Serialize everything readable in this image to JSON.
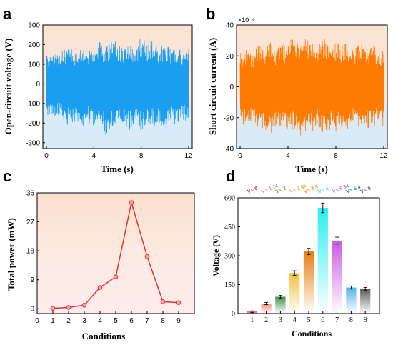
{
  "colors": {
    "axis": "#000000",
    "voltage_wave": "#1a9ff0",
    "current_wave": "#ff7a00",
    "power_line": "#e8312f",
    "bg_top_warm": "#fbe3d3",
    "bg_bottom_cool": "#dcecf8"
  },
  "chart_data": [
    {
      "id": "a",
      "panel_label": "a",
      "type": "line",
      "xlabel": "Time (s)",
      "ylabel": "Open-circuit voltage (V)",
      "xlim": [
        -0.3,
        12.3
      ],
      "ylim": [
        -330,
        300
      ],
      "xticks": [
        0,
        4,
        8,
        12
      ],
      "yticks": [
        -300,
        -200,
        -100,
        0,
        100,
        200,
        300
      ],
      "envelope": {
        "x": [
          0,
          0.5,
          1,
          1.5,
          2,
          2.5,
          3,
          3.5,
          4,
          4.5,
          5,
          5.5,
          6,
          6.5,
          7,
          7.5,
          8,
          8.5,
          9,
          9.5,
          10,
          10.5,
          11,
          11.5,
          12
        ],
        "upper": [
          150,
          160,
          155,
          175,
          185,
          165,
          205,
          175,
          200,
          215,
          180,
          240,
          210,
          190,
          225,
          175,
          245,
          205,
          235,
          170,
          215,
          175,
          190,
          165,
          180
        ],
        "lower": [
          -160,
          -170,
          -165,
          -200,
          -225,
          -185,
          -240,
          -200,
          -225,
          -205,
          -265,
          -215,
          -235,
          -195,
          -250,
          -200,
          -240,
          -205,
          -225,
          -195,
          -240,
          -200,
          -215,
          -185,
          -200
        ]
      }
    },
    {
      "id": "b",
      "panel_label": "b",
      "type": "line",
      "xlabel": "Time (s)",
      "ylabel": "Short circuit current (A)",
      "multiplier": "×10⁻⁶",
      "xlim": [
        -0.3,
        12.3
      ],
      "ylim": [
        -40,
        40
      ],
      "xticks": [
        0,
        4,
        8,
        12
      ],
      "yticks": [
        -40,
        -20,
        0,
        20,
        40
      ],
      "envelope": {
        "x": [
          0,
          0.5,
          1,
          1.5,
          2,
          2.5,
          3,
          3.5,
          4,
          4.5,
          5,
          5.5,
          6,
          6.5,
          7,
          7.5,
          8,
          8.5,
          9,
          9.5,
          10,
          10.5,
          11,
          11.5,
          12
        ],
        "upper": [
          22,
          24,
          21,
          28,
          25,
          31,
          24,
          29,
          26,
          35,
          27,
          33,
          30,
          28,
          33,
          26,
          31,
          28,
          30,
          25,
          29,
          26,
          28,
          24,
          25
        ],
        "lower": [
          -24,
          -26,
          -22,
          -29,
          -27,
          -31,
          -25,
          -28,
          -30,
          -27,
          -32,
          -29,
          -31,
          -25,
          -33,
          -28,
          -30,
          -26,
          -29,
          -24,
          -28,
          -25,
          -29,
          -23,
          -26
        ]
      }
    },
    {
      "id": "c",
      "panel_label": "c",
      "type": "line",
      "xlabel": "Conditions",
      "ylabel": "Total power  (mW)",
      "xlim": [
        0,
        10
      ],
      "ylim": [
        -1.5,
        36
      ],
      "xticks": [
        0,
        1,
        2,
        3,
        4,
        5,
        6,
        7,
        8,
        9
      ],
      "yticks": [
        0,
        9,
        18,
        27,
        36
      ],
      "x": [
        1,
        2,
        3,
        4,
        5,
        6,
        7,
        8,
        9
      ],
      "y": [
        0.1,
        0.4,
        1.1,
        6.6,
        9.9,
        33.0,
        16.2,
        2.2,
        1.9
      ]
    },
    {
      "id": "d",
      "panel_label": "d",
      "type": "bar",
      "xlabel": "Conditions",
      "ylabel": "Voltage (V)",
      "ylim": [
        0,
        600
      ],
      "yticks": [
        0,
        150,
        300,
        450,
        600
      ],
      "categories": [
        "1",
        "2",
        "3",
        "4",
        "5",
        "6",
        "7",
        "8",
        "9"
      ],
      "values": [
        10,
        52,
        87,
        210,
        322,
        548,
        378,
        135,
        128
      ],
      "errors": [
        4,
        6,
        7,
        12,
        16,
        25,
        18,
        8,
        7
      ],
      "bar_top_colors": [
        "#d3142b",
        "#f28a7a",
        "#3f8f49",
        "#f0c03a",
        "#e87e10",
        "#28f0ef",
        "#cc5ae5",
        "#55b4ea",
        "#5c5c5c"
      ],
      "annotations": [
        "V= 0",
        "V= 1.14",
        "V= 2",
        "V= 2.66",
        "V= 3.5",
        "V= 4",
        "V= 5.34",
        "V= 6.4",
        "V= 8"
      ],
      "annotation_colors": [
        "#d80b0b",
        "#f07f5a",
        "#7c9a2c",
        "#e0a92a",
        "#f08a20",
        "#28dde0",
        "#b855e0",
        "#1a78c8",
        "#555555"
      ]
    }
  ]
}
